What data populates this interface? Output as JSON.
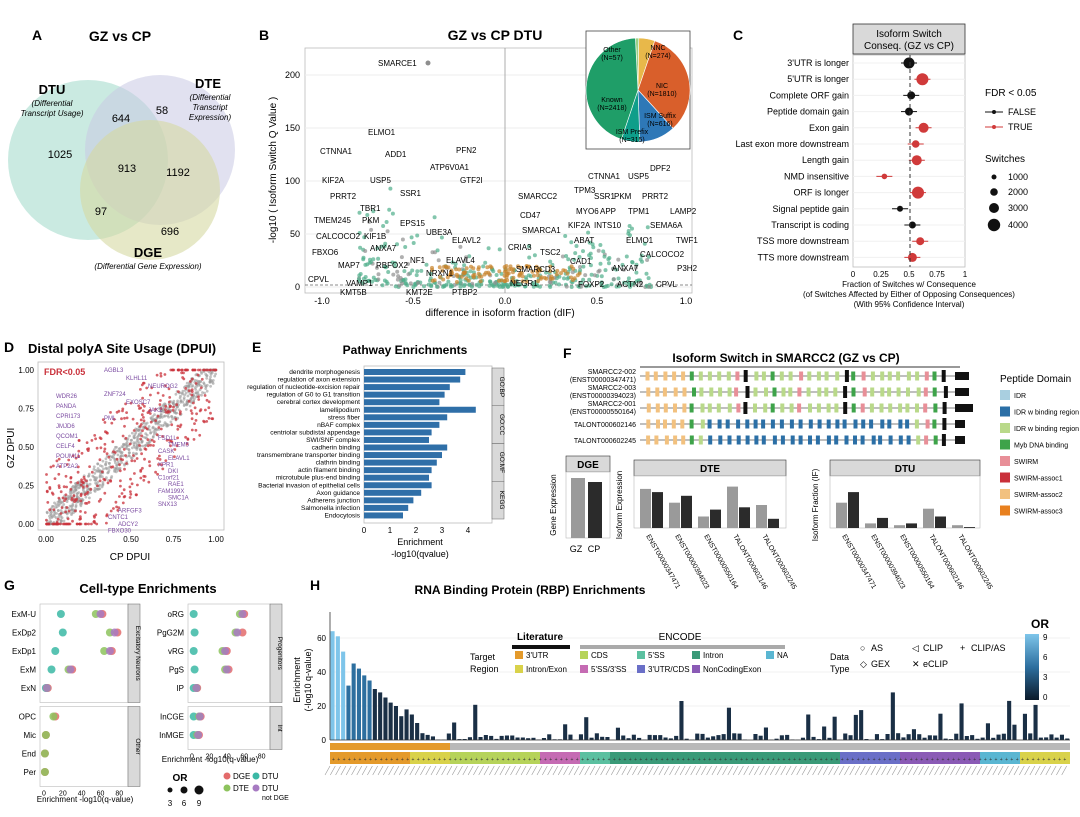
{
  "panels": {
    "A": {
      "letter": "A",
      "title": "GZ vs CP",
      "sets": [
        {
          "name": "DTU",
          "desc1": "(Differential",
          "desc2": "Transcript Usage)",
          "color": "#9fd9c9"
        },
        {
          "name": "DTE",
          "desc1": "(Differential",
          "desc2": "Transcript",
          "desc3": "Expression)",
          "color": "#c9c8e3"
        },
        {
          "name": "DGE",
          "desc1": "(Differential Gene Expression)",
          "color": "#d6d9a1"
        }
      ],
      "counts": {
        "dtu_only": "1025",
        "dtu_dte": "644",
        "dte_only": "58",
        "all": "913",
        "dte_dge": "1192",
        "dtu_dge": "97",
        "dge_only": "696"
      }
    },
    "B": {
      "letter": "B",
      "title": "GZ vs CP  DTU",
      "ylabel": "-log10 ( Isoform Switch Q Value )",
      "xlabel": "difference in isoform fraction (dIF)",
      "genes": [
        "SMARCE1",
        "ELMO1",
        "CTNNA1",
        "ADD1",
        "PFN2",
        "ATP6V0A1",
        "GTF2I",
        "KIF2A",
        "USP5",
        "SSR1",
        "PRRT2",
        "TBR1",
        "SMARCC2",
        "TMEM245",
        "PKM",
        "EPS15",
        "CALCOCO2",
        "KIF1B",
        "UBE3A",
        "ELAVL2",
        "FBXO6",
        "ANXA7",
        "NF1",
        "ELAVL4",
        "CRIA3",
        "MAP7",
        "RBFOX2",
        "NRXN1",
        "CPVL",
        "VAMP1",
        "KMT5B",
        "KMT2E",
        "PTBP2",
        "CTNNA1",
        "USP5",
        "DPF2",
        "TPM3",
        "SSR1",
        "PKM",
        "PRRT2",
        "MYO6",
        "APP",
        "TPM1",
        "LAMP2",
        "CD47",
        "KIF2A",
        "INTS10",
        "SEMA6A",
        "SMARCA1",
        "ABAT",
        "ELMO1",
        "TWF1",
        "TSC2",
        "CAD1",
        "CALCOCO2",
        "SMARCD3",
        "ANXA7",
        "P3H2",
        "NEGR1",
        "FOXP2",
        "ACTN2",
        "CPVL"
      ],
      "inset": {
        "title_labels": [
          "Other (N=57)",
          "NNC (N=274)",
          "NIC (N=1810)",
          "ISM Suffix (N=616)",
          "ISM Prefix (N=315)",
          "Known (N=2418)"
        ],
        "colors": [
          "#9bd186",
          "#e8b84a",
          "#d95f2b",
          "#2e78b7",
          "#0e9e8a",
          "#1f9e68"
        ]
      }
    },
    "C": {
      "letter": "C",
      "header1": "Isoform Switch",
      "header2": "Conseq. (GZ vs CP)",
      "rows": [
        "3'UTR is longer",
        "5'UTR is longer",
        "Complete ORF gain",
        "Peptide domain gain",
        "Exon gain",
        "Last exon more downstream",
        "Length gain",
        "NMD insensitive",
        "ORF is longer",
        "Signal peptide gain",
        "Transcript is coding",
        "TSS more downstream",
        "TTS more downstream"
      ],
      "xticks": [
        "0",
        "0.25",
        "0.5",
        "0.75",
        "1"
      ],
      "xlabel1": "Fraction of Switches w/ Consequence",
      "xlabel2": "(of Switches Affected by Either of Opposing Consequences)",
      "xlabel3": "(With 95% Confidence Interval)",
      "legend_fdr": "FDR < 0.05",
      "legend_false": "FALSE",
      "legend_true": "TRUE",
      "legend_switches": "Switches",
      "switch_sizes": [
        "1000",
        "2000",
        "3000",
        "4000"
      ]
    },
    "D": {
      "letter": "D",
      "title": "Distal polyA Site Usage (DPUI)",
      "fdr": "FDR<0.05",
      "ylabel": "GZ DPUI",
      "xlabel": "CP DPUI",
      "ticks": [
        "0.00",
        "0.25",
        "0.50",
        "0.75",
        "1.00"
      ],
      "genes_left": [
        "WDR26",
        "PANDA",
        "CPRI173",
        "JMJD6",
        "QCOM1",
        "CELF4",
        "POUM11",
        "ATP2A2"
      ],
      "genes_top": [
        "AGBL3",
        "KLHL11",
        "NEUROG2",
        "ZNF724",
        "EXOSC7",
        "JAK2",
        "PML"
      ],
      "genes_right": [
        "FSD1L",
        "TMEM5",
        "CASK",
        "ELAVL1",
        "XPR1",
        "DKI",
        "C1orf21",
        "RAE1",
        "FAM199X",
        "SMC1A",
        "SNX13",
        "ARFGF3",
        "CNTC1",
        "ADCY2",
        "FBXO30"
      ]
    },
    "E": {
      "letter": "E",
      "title": "Pathway Enrichments",
      "terms": [
        "dendrite morphogenesis",
        "regulation of axon extension",
        "regulation of nucleotide-excision repair",
        "regulation of G0 to G1 transition",
        "cerebral cortex development",
        "lamellipodium",
        "stress fiber",
        "nBAF complex",
        "centriolar subdistal appendage",
        "SWI/SNF complex",
        "cadherin binding",
        "transmembrane transporter binding",
        "clathrin binding",
        "actin filament binding",
        "microtubule plus-end binding",
        "Bacterial invasion of epithelial cells",
        "Axon guidance",
        "Adherens junction",
        "Salmonella infection",
        "Endocytosis"
      ],
      "groups": [
        "GO:BP",
        "GO:CC",
        "GO:MF",
        "KEGG"
      ],
      "xticks": [
        "0",
        "1",
        "2",
        "3",
        "4"
      ],
      "xlabel1": "Enrichment",
      "xlabel2": "-log10(qvalue)"
    },
    "F": {
      "letter": "F",
      "title": "Isoform Switch in SMARCC2 (GZ vs CP)",
      "isoforms": [
        {
          "name": "SMARCC2-002",
          "id": "(ENST00000347471)"
        },
        {
          "name": "SMARCC2-003",
          "id": "(ENST00000394023)"
        },
        {
          "name": "SMARCC2-001",
          "id": "(ENST00000550164)"
        },
        {
          "name": "TALONT000602146",
          "id": ""
        },
        {
          "name": "TALONT000602245",
          "id": ""
        }
      ],
      "legend_title": "Peptide Domain",
      "domains": [
        {
          "label": "IDR",
          "color": "#a9cfe0"
        },
        {
          "label": "IDR w binding region (x3)",
          "color": "#2b6fa6"
        },
        {
          "label": "IDR w binding region (x4)",
          "color": "#b9d98a"
        },
        {
          "label": "Myb DNA binding",
          "color": "#3ea34a"
        },
        {
          "label": "SWIRM",
          "color": "#e88f98"
        },
        {
          "label": "SWIRM-assoc1",
          "color": "#c9303a"
        },
        {
          "label": "SWIRM-assoc2",
          "color": "#f2c17f"
        },
        {
          "label": "SWIRM-assoc3",
          "color": "#e8801f"
        }
      ],
      "dge_label": "DGE",
      "dte_label": "DTE",
      "dtu_label": "DTU",
      "gene_expr": "Gene Expression",
      "iso_expr": "Isoform Expression",
      "iso_frac": "Isoform Fraction (IF)",
      "gz": "GZ",
      "cp": "CP",
      "tx_labels": [
        "ENST00000347471",
        "ENST00000394023",
        "ENST00000550164",
        "TALONT000602146",
        "TALONT000602245"
      ],
      "dte_values_gz": [
        0.85,
        0.55,
        0.25,
        0.9,
        0.5
      ],
      "dte_values_cp": [
        0.78,
        0.7,
        0.4,
        0.45,
        0.2
      ],
      "dtu_values_gz": [
        0.55,
        0.1,
        0.06,
        0.42,
        0.06
      ],
      "dtu_values_cp": [
        0.78,
        0.22,
        0.1,
        0.25,
        0.02
      ],
      "stars": [
        "*",
        "*",
        "***",
        "***",
        "*",
        "***",
        "***",
        "***",
        "***"
      ]
    },
    "G": {
      "letter": "G",
      "title": "Cell-type Enrichments",
      "left_types": [
        "ExM-U",
        "ExDp2",
        "ExDp1",
        "ExM",
        "ExN",
        "OPC",
        "Mic",
        "End",
        "Per"
      ],
      "left_groups": [
        "Excitatory Neurons",
        "Other"
      ],
      "right_types": [
        "oRG",
        "PgG2M",
        "vRG",
        "PgS",
        "IP",
        "InCGE",
        "InMGE"
      ],
      "right_groups": [
        "Progenitors",
        "Int"
      ],
      "xticks": [
        "0",
        "20",
        "40",
        "60",
        "80"
      ],
      "xlabel": "Enrichment -log10(q-value)",
      "or_label": "OR",
      "or_sizes": [
        "3",
        "6",
        "9"
      ],
      "legend": [
        "DGE",
        "DTU",
        "DTE",
        "DTU not DGE"
      ],
      "legend_colors": [
        "#e36b6b",
        "#3bb8a5",
        "#8dc35d",
        "#a77ac2"
      ]
    },
    "H": {
      "letter": "H",
      "title": "RNA Binding Protein (RBP) Enrichments",
      "ylabel1": "Enrichment",
      "ylabel2": "(-log10 q-value)",
      "yticks": [
        "0",
        "20",
        "40",
        "60"
      ],
      "literature": "Literature",
      "encode": "ENCODE",
      "target_region": "Target Region",
      "regions": [
        {
          "label": "3'UTR",
          "color": "#e49a2b"
        },
        {
          "label": "CDS",
          "color": "#b6d35a"
        },
        {
          "label": "5'SS",
          "color": "#5bc0a0"
        },
        {
          "label": "Intron",
          "color": "#3a9a78"
        },
        {
          "label": "NA",
          "color": "#5ab6d2"
        },
        {
          "label": "Intron/Exon",
          "color": "#d9d24a"
        },
        {
          "label": "5'SS/3'SS",
          "color": "#c56bb3"
        },
        {
          "label": "3'UTR/CDS",
          "color": "#6a6fc7"
        },
        {
          "label": "NonCodingExon",
          "color": "#8a5ab5"
        }
      ],
      "data_type": "Data Type",
      "markers": [
        "AS",
        "CLIP",
        "CLIP/AS",
        "GEX",
        "eCLIP"
      ],
      "marker_glyphs": [
        "○",
        "◁",
        "+",
        "◇",
        "✕"
      ],
      "or_label": "OR",
      "or_ticks": [
        "9",
        "6",
        "3",
        "0"
      ]
    }
  }
}
